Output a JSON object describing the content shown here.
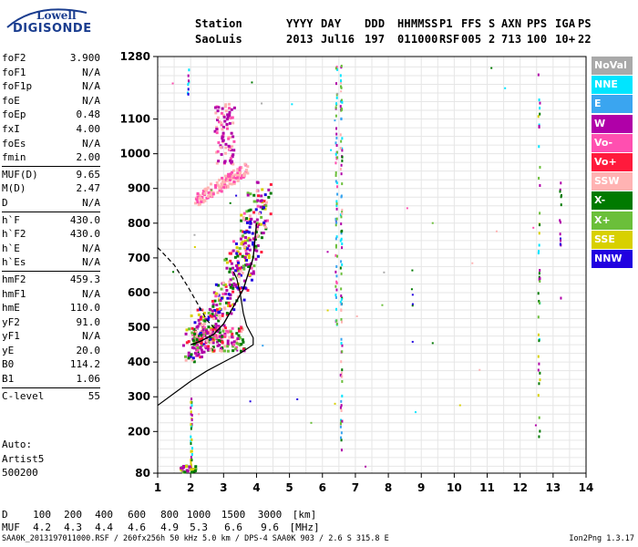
{
  "logo": {
    "line1": "Lowell",
    "line2": "DIGISONDE"
  },
  "header": {
    "labels": [
      "Station",
      "YYYY",
      "DAY",
      "DDD",
      "HHMMSS",
      "P1",
      "FFS",
      "S",
      "AXN",
      "PPS",
      "IGA",
      "PS"
    ],
    "values": [
      "SaoLuis",
      "2013",
      "Jul16",
      "197",
      "011000",
      "RSF",
      "005",
      "2",
      "713",
      "100",
      "10+",
      "22"
    ]
  },
  "params": {
    "groups": [
      [
        [
          "foF2",
          "3.900"
        ],
        [
          "foF1",
          "N/A"
        ],
        [
          "foF1p",
          "N/A"
        ],
        [
          "foE",
          "N/A"
        ],
        [
          "foEp",
          "0.48"
        ],
        [
          "fxI",
          "4.00"
        ],
        [
          "foEs",
          "N/A"
        ],
        [
          "fmin",
          "2.00"
        ]
      ],
      [
        [
          "MUF(D)",
          "9.65"
        ],
        [
          "M(D)",
          "2.47"
        ],
        [
          "D",
          "N/A"
        ]
      ],
      [
        [
          "h`F",
          "430.0"
        ],
        [
          "h`F2",
          "430.0"
        ],
        [
          "h`E",
          "N/A"
        ],
        [
          "h`Es",
          "N/A"
        ]
      ],
      [
        [
          "hmF2",
          "459.3"
        ],
        [
          "hmF1",
          "N/A"
        ],
        [
          "hmE",
          "110.0"
        ],
        [
          "yF2",
          "91.0"
        ],
        [
          "yF1",
          "N/A"
        ],
        [
          "yE",
          "20.0"
        ],
        [
          "B0",
          "114.2"
        ],
        [
          "B1",
          "1.06"
        ]
      ],
      [
        [
          "C-level",
          "55"
        ]
      ]
    ]
  },
  "auto": {
    "line1": "Auto:",
    "line2": "Artist5",
    "line3": "500200"
  },
  "legend": [
    {
      "label": "NoVal",
      "color": "#a9a9a9"
    },
    {
      "label": "NNE",
      "color": "#00e5ff"
    },
    {
      "label": "E",
      "color": "#3aa5f0"
    },
    {
      "label": "W",
      "color": "#b000a8"
    },
    {
      "label": "Vo-",
      "color": "#ff4fb0"
    },
    {
      "label": "Vo+",
      "color": "#ff1a3c"
    },
    {
      "label": "SSW",
      "color": "#ffb3b3"
    },
    {
      "label": "X-",
      "color": "#007a00"
    },
    {
      "label": "X+",
      "color": "#6bbf3a"
    },
    {
      "label": "SSE",
      "color": "#d8d000"
    },
    {
      "label": "NNW",
      "color": "#2000e0"
    }
  ],
  "chart_data": {
    "type": "scatter",
    "xlim": [
      1,
      14
    ],
    "ylim": [
      80,
      1280
    ],
    "x_ticks": [
      1,
      2,
      3,
      4,
      5,
      6,
      7,
      8,
      9,
      10,
      11,
      12,
      13,
      14
    ],
    "y_ticks": [
      80,
      200,
      300,
      400,
      500,
      600,
      700,
      800,
      900,
      1000,
      1100,
      1280
    ],
    "grid": true,
    "trace_f2": [
      [
        2.0,
        450
      ],
      [
        2.3,
        460
      ],
      [
        2.7,
        480
      ],
      [
        3.0,
        510
      ],
      [
        3.3,
        560
      ],
      [
        3.6,
        610
      ],
      [
        3.9,
        700
      ],
      [
        4.0,
        800
      ]
    ],
    "profile_solid": [
      [
        1.0,
        275
      ],
      [
        1.5,
        310
      ],
      [
        2.0,
        345
      ],
      [
        2.5,
        375
      ],
      [
        3.0,
        400
      ],
      [
        3.5,
        425
      ],
      [
        3.9,
        450
      ],
      [
        3.9,
        470
      ],
      [
        3.7,
        505
      ],
      [
        3.6,
        540
      ],
      [
        3.5,
        600
      ],
      [
        3.4,
        640
      ],
      [
        3.3,
        660
      ]
    ],
    "profile_dashed": [
      [
        1.0,
        730
      ],
      [
        1.5,
        680
      ],
      [
        1.9,
        620
      ],
      [
        2.2,
        570
      ],
      [
        2.5,
        520
      ],
      [
        2.8,
        490
      ]
    ]
  },
  "bottom": {
    "d_label": "D",
    "d_values": [
      "100",
      "200",
      "400",
      "600",
      "800",
      "1000",
      "1500",
      "3000",
      "[km]"
    ],
    "muf_label": "MUF",
    "muf_values": [
      "4.2",
      "4.3",
      "4.4",
      "4.6",
      "4.9",
      "5.3",
      "6.6",
      "9.6",
      "[MHz]"
    ]
  },
  "footer": {
    "left": "SAA0K_2013197011000.RSF / 260fx256h 50 kHz 5.0 km / DPS-4 SAA0K 903 / 2.6 S 315.8 E",
    "right": "Ion2Png 1.3.17"
  }
}
